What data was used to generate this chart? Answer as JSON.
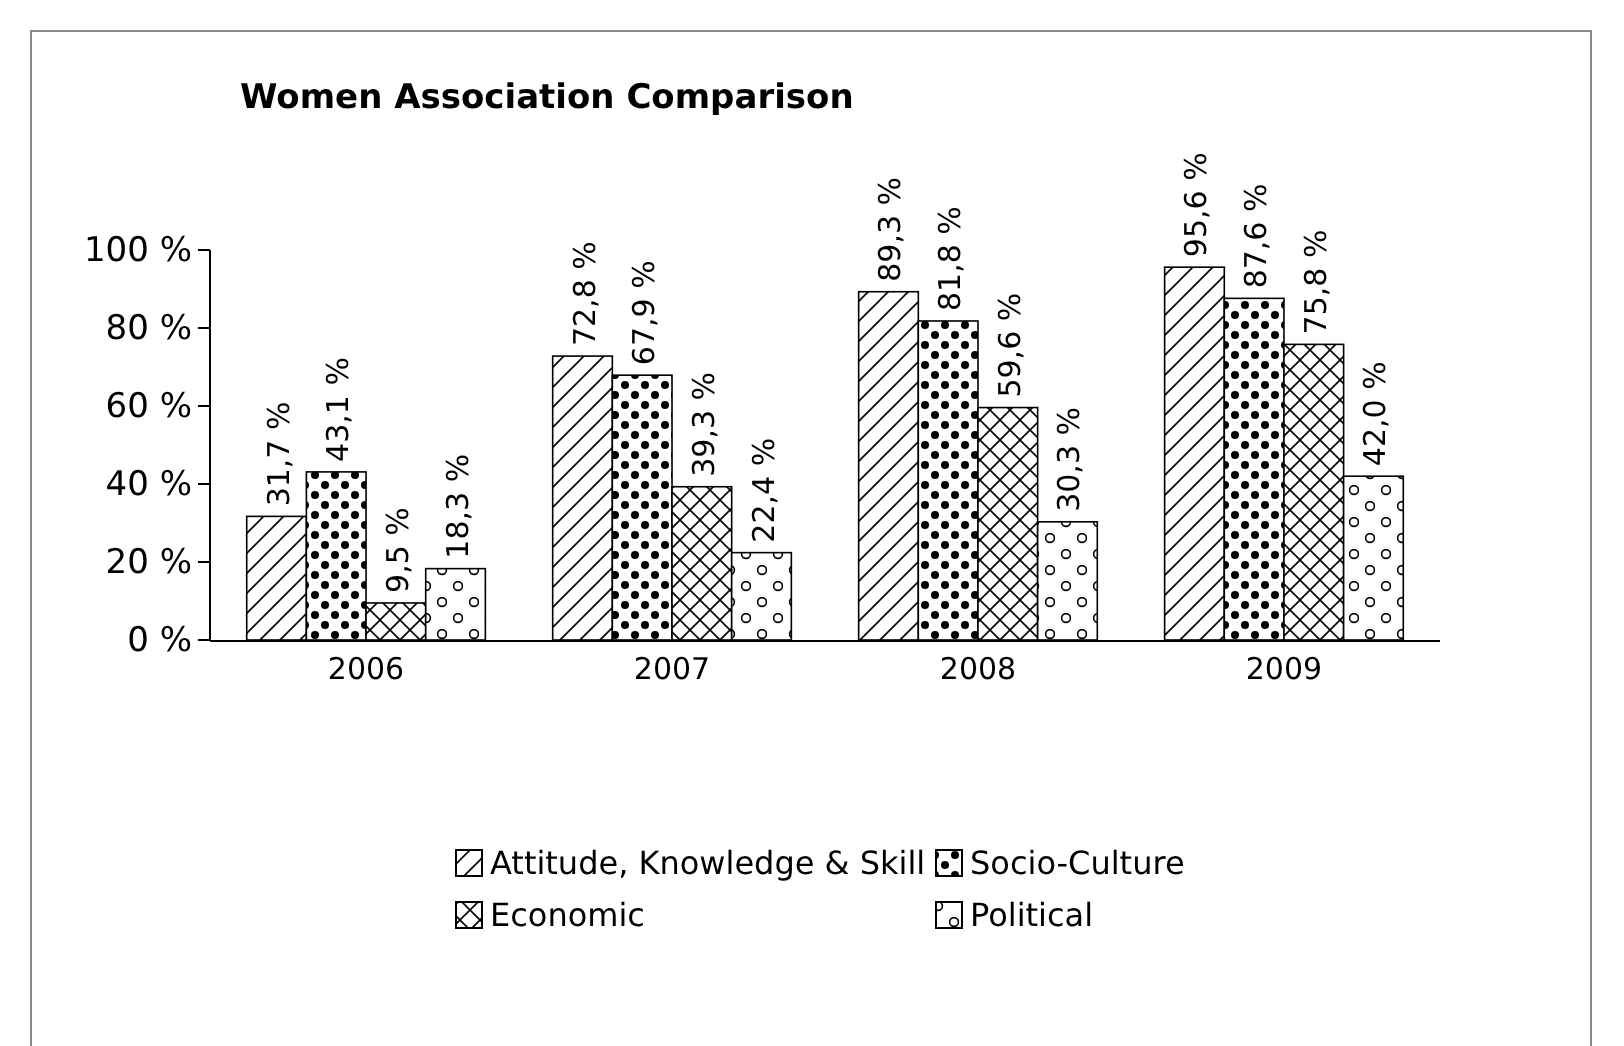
{
  "chart_data": {
    "type": "bar",
    "title": "Women Association Comparison",
    "categories": [
      "2006",
      "2007",
      "2008",
      "2009"
    ],
    "series": [
      {
        "name": "Attitude, Knowledge & Skill",
        "color": "#000000",
        "values": [
          31.7,
          72.8,
          89.3,
          95.6
        ],
        "value_labels": [
          "31,7 %",
          "72,8 %",
          "89,3 %",
          "95,6 %"
        ]
      },
      {
        "name": "Socio-Culture",
        "color": "#000000",
        "values": [
          43.1,
          67.9,
          81.8,
          87.6
        ],
        "value_labels": [
          "43,1 %",
          "67,9 %",
          "81,8 %",
          "87,6 %"
        ]
      },
      {
        "name": "Economic",
        "color": "#000000",
        "values": [
          9.5,
          39.3,
          59.6,
          75.8
        ],
        "value_labels": [
          "9,5 %",
          "39,3 %",
          "59,6 %",
          "75,8 %"
        ]
      },
      {
        "name": "Political",
        "color": "#000000",
        "values": [
          18.3,
          22.4,
          30.3,
          42.0
        ],
        "value_labels": [
          "18,3 %",
          "22,4 %",
          "30,3 %",
          "42,0 %"
        ]
      }
    ],
    "ylim": [
      0,
      100
    ],
    "yticks": [
      {
        "value": 0,
        "label": "0 %"
      },
      {
        "value": 20,
        "label": "20 %"
      },
      {
        "value": 40,
        "label": "40 %"
      },
      {
        "value": 60,
        "label": "60 %"
      },
      {
        "value": 80,
        "label": "80 %"
      },
      {
        "value": 100,
        "label": "100 %"
      }
    ],
    "grid": false,
    "legend": "bottom"
  }
}
